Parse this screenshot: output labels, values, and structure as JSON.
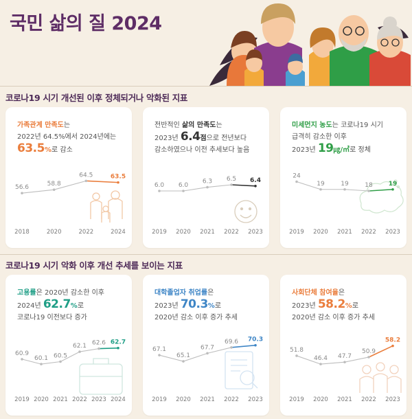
{
  "header": {
    "title": "국민 삶의 질 2024"
  },
  "sections": [
    {
      "title": "코로나19 시기 개선된 이후 정체되거나 악화된 지표"
    },
    {
      "title": "코로나19 시기 악화 이후 개선 추세를 보이는 지표"
    }
  ],
  "cards": [
    {
      "lead": "가족관계 만족도",
      "lead_tail": "는",
      "line2": "2022년 64.5%에서 2024년에는",
      "big": "63.5",
      "unit": "%",
      "after": "로 감소",
      "line3": "",
      "accent": "#ea7d3c"
    },
    {
      "line1_pre": "전반적인 ",
      "lead": "삶의 만족도",
      "lead_tail": "는",
      "line2_pre": "2023년 ",
      "big": "6.4",
      "unit": "점",
      "after": "으로 전년보다",
      "line3": "감소하였으나 이전 추세보다 높음",
      "accent": "#333333"
    },
    {
      "lead": "미세먼지 농도",
      "lead_tail": "는 코로나19 시기",
      "line2": "급격히 감소한 이후",
      "line3_pre": "2023년 ",
      "big": "19",
      "unit": "㎍/㎥",
      "after": "로 정체",
      "accent": "#2f9e47"
    },
    {
      "lead": "고용률",
      "lead_tail": "은 2020년 감소한 이후",
      "line2_pre": "2024년 ",
      "big": "62.7",
      "unit": "%",
      "after": "로",
      "line3": "코로나19 이전보다 증가",
      "accent": "#1f9e86"
    },
    {
      "lead": "대학졸업자 취업률",
      "lead_tail": "은",
      "line2_pre": "2023년 ",
      "big": "70.3",
      "unit": "%",
      "after": "로",
      "line3": "2020년 감소 이후 증가 추세",
      "accent": "#3f86c6"
    },
    {
      "lead": "사회단체 참여율",
      "lead_tail": "은",
      "line2_pre": "2023년 ",
      "big": "58.2",
      "unit": "%",
      "after": "로",
      "line3": "2020년 감소 이후 증가 추세",
      "accent": "#ea7d3c"
    }
  ],
  "chart_data": [
    {
      "type": "line",
      "title": "가족관계 만족도",
      "x": [
        "2018",
        "2020",
        "2022",
        "2024"
      ],
      "values": [
        56.6,
        58.8,
        64.5,
        63.5
      ],
      "labels": [
        "56.6",
        "58.8",
        "64.5",
        "63.5"
      ],
      "ylim": [
        50,
        70
      ],
      "color": "#ea7d3c"
    },
    {
      "type": "line",
      "title": "삶의 만족도",
      "x": [
        "2019",
        "2020",
        "2021",
        "2022",
        "2023"
      ],
      "values": [
        6.0,
        6.0,
        6.3,
        6.5,
        6.4
      ],
      "labels": [
        "6.0",
        "6.0",
        "6.3",
        "6.5",
        "6.4"
      ],
      "ylim": [
        5,
        7.5
      ],
      "color": "#333333"
    },
    {
      "type": "line",
      "title": "미세먼지 농도",
      "x": [
        "2019",
        "2020",
        "2021",
        "2022",
        "2023"
      ],
      "values": [
        24,
        19,
        19,
        18,
        19
      ],
      "labels": [
        "24",
        "19",
        "19",
        "18",
        "19"
      ],
      "ylim": [
        10,
        30
      ],
      "color": "#2f9e47"
    },
    {
      "type": "line",
      "title": "고용률",
      "x": [
        "2019",
        "2020",
        "2021",
        "2022",
        "2023",
        "2024"
      ],
      "values": [
        60.9,
        60.1,
        60.5,
        62.1,
        62.6,
        62.7
      ],
      "labels": [
        "60.9",
        "60.1",
        "60.5",
        "62.1",
        "62.6",
        "62.7"
      ],
      "ylim": [
        59,
        64
      ],
      "color": "#1f9e86"
    },
    {
      "type": "line",
      "title": "대학졸업자 취업률",
      "x": [
        "2019",
        "2020",
        "2021",
        "2022",
        "2023"
      ],
      "values": [
        67.1,
        65.1,
        67.7,
        69.6,
        70.3
      ],
      "labels": [
        "67.1",
        "65.1",
        "67.7",
        "69.6",
        "70.3"
      ],
      "ylim": [
        62,
        72
      ],
      "color": "#3f86c6"
    },
    {
      "type": "line",
      "title": "사회단체 참여율",
      "x": [
        "2019",
        "2020",
        "2021",
        "2022",
        "2023"
      ],
      "values": [
        51.8,
        46.4,
        47.7,
        50.9,
        58.2
      ],
      "labels": [
        "51.8",
        "46.4",
        "47.7",
        "50.9",
        "58.2"
      ],
      "ylim": [
        42,
        62
      ],
      "color": "#ea7d3c"
    }
  ]
}
